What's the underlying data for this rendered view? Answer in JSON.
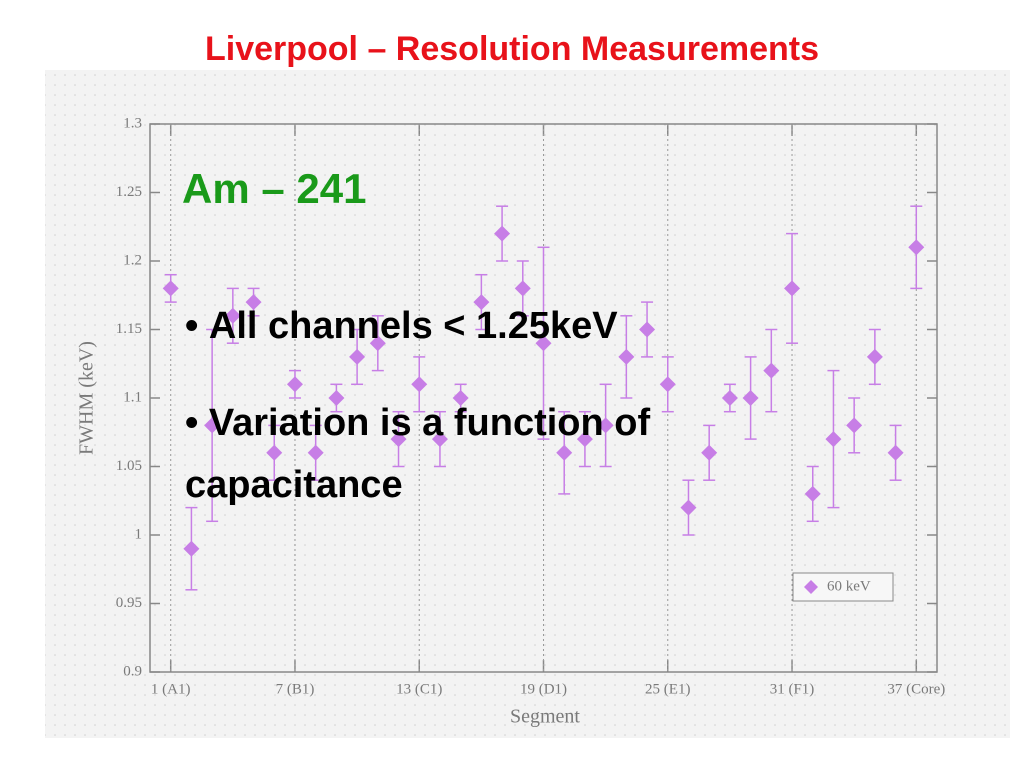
{
  "slide": {
    "title": "Liverpool – Resolution Measurements",
    "heading": "Am – 241",
    "bullets": [
      "All channels < 1.25keV",
      "Variation is a function of capacitance"
    ]
  },
  "chart_data": {
    "type": "scatter",
    "x_label": "Segment",
    "y_label": "FWHM (keV)",
    "x": [
      1,
      2,
      3,
      4,
      5,
      6,
      7,
      8,
      9,
      10,
      11,
      12,
      13,
      14,
      15,
      16,
      17,
      18,
      19,
      20,
      21,
      22,
      23,
      24,
      25,
      26,
      27,
      28,
      29,
      30,
      31,
      32,
      33,
      34,
      35,
      36,
      37
    ],
    "series": [
      {
        "name": "60 keV",
        "color": "#c77ee6",
        "values": [
          1.18,
          0.99,
          1.08,
          1.16,
          1.17,
          1.06,
          1.11,
          1.06,
          1.1,
          1.13,
          1.14,
          1.07,
          1.11,
          1.07,
          1.1,
          1.17,
          1.22,
          1.18,
          1.14,
          1.06,
          1.07,
          1.08,
          1.13,
          1.15,
          1.11,
          1.02,
          1.06,
          1.1,
          1.1,
          1.12,
          1.18,
          1.03,
          1.07,
          1.08,
          1.13,
          1.06,
          1.21
        ],
        "errors": [
          0.01,
          0.03,
          0.07,
          0.02,
          0.01,
          0.02,
          0.01,
          0.02,
          0.01,
          0.02,
          0.02,
          0.02,
          0.02,
          0.02,
          0.01,
          0.02,
          0.02,
          0.02,
          0.07,
          0.03,
          0.02,
          0.03,
          0.03,
          0.02,
          0.02,
          0.02,
          0.02,
          0.01,
          0.03,
          0.03,
          0.04,
          0.02,
          0.05,
          0.02,
          0.02,
          0.02,
          0.03
        ]
      }
    ],
    "xlim": [
      0,
      38
    ],
    "xticks": [
      {
        "value": 1,
        "label": "1 (A1)"
      },
      {
        "value": 7,
        "label": "7 (B1)"
      },
      {
        "value": 13,
        "label": "13 (C1)"
      },
      {
        "value": 19,
        "label": "19 (D1)"
      },
      {
        "value": 25,
        "label": "25 (E1)"
      },
      {
        "value": 31,
        "label": "31 (F1)"
      },
      {
        "value": 37,
        "label": "37 (Core)"
      }
    ],
    "ylim": [
      0.9,
      1.3
    ],
    "yticks": [
      0.9,
      0.95,
      1,
      1.05,
      1.1,
      1.15,
      1.2,
      1.25,
      1.3
    ],
    "x_grid": true,
    "legend": "lower right"
  }
}
